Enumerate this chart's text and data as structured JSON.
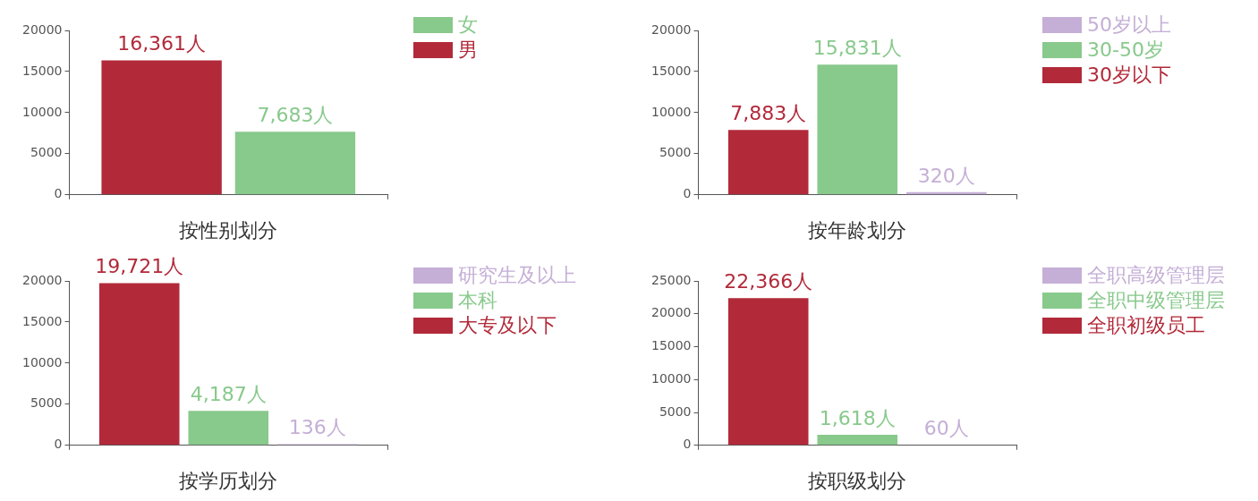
{
  "chart_data": [
    {
      "type": "bar",
      "xlabel": "按性别划分",
      "categories": [
        null
      ],
      "ylim": [
        0,
        20000
      ],
      "yticks": [
        0,
        5000,
        10000,
        15000,
        20000
      ],
      "legend": "top right",
      "series": [
        {
          "name": "男",
          "color": "#b22a3a",
          "values": [
            16361
          ],
          "value_labels": [
            "16,361人"
          ]
        },
        {
          "name": "女",
          "color": "#88c98c",
          "values": [
            7683
          ],
          "value_labels": [
            "7,683人"
          ]
        }
      ]
    },
    {
      "type": "bar",
      "xlabel": "按年龄划分",
      "categories": [
        null
      ],
      "ylim": [
        0,
        20000
      ],
      "yticks": [
        0,
        5000,
        10000,
        15000,
        20000
      ],
      "legend": "top right",
      "series": [
        {
          "name": "30岁以下",
          "color": "#b22a3a",
          "values": [
            7883
          ],
          "value_labels": [
            "7,883人"
          ]
        },
        {
          "name": "30-50岁",
          "color": "#88c98c",
          "values": [
            15831
          ],
          "value_labels": [
            "15,831人"
          ]
        },
        {
          "name": "50岁以上",
          "color": "#c5afd6",
          "values": [
            320
          ],
          "value_labels": [
            "320人"
          ]
        }
      ]
    },
    {
      "type": "bar",
      "xlabel": "按学历划分",
      "categories": [
        null
      ],
      "ylim": [
        0,
        20000
      ],
      "yticks": [
        0,
        5000,
        10000,
        15000,
        20000
      ],
      "legend": "top right",
      "series": [
        {
          "name": "大专及以下",
          "color": "#b22a3a",
          "values": [
            19721
          ],
          "value_labels": [
            "19,721人"
          ]
        },
        {
          "name": "本科",
          "color": "#88c98c",
          "values": [
            4187
          ],
          "value_labels": [
            "4,187人"
          ]
        },
        {
          "name": "研究生及以上",
          "color": "#c5afd6",
          "values": [
            136
          ],
          "value_labels": [
            "136人"
          ]
        }
      ]
    },
    {
      "type": "bar",
      "xlabel": "按职级划分",
      "categories": [
        null
      ],
      "ylim": [
        0,
        25000
      ],
      "yticks": [
        0,
        5000,
        10000,
        15000,
        20000,
        25000
      ],
      "legend": "top right",
      "series": [
        {
          "name": "全职初级员工",
          "color": "#b22a3a",
          "values": [
            22366
          ],
          "value_labels": [
            "22,366人"
          ]
        },
        {
          "name": "全职中级管理层",
          "color": "#88c98c",
          "values": [
            1618
          ],
          "value_labels": [
            "1,618人"
          ]
        },
        {
          "name": "全职高级管理层",
          "color": "#c5afd6",
          "values": [
            60
          ],
          "value_labels": [
            "60人"
          ]
        }
      ]
    }
  ]
}
